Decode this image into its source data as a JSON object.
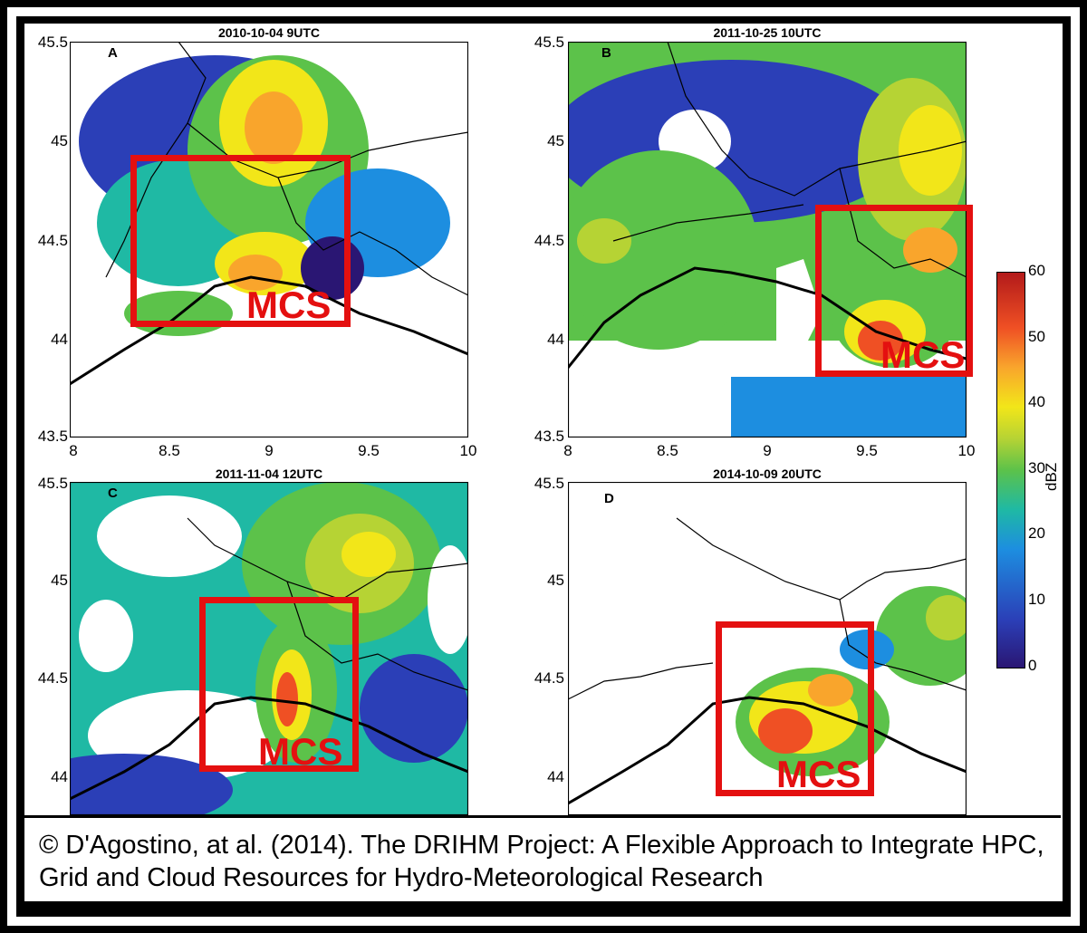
{
  "panels": [
    {
      "title": "2010-10-04 9UTC",
      "letter": "A",
      "mcs": "MCS",
      "y_ticks": [
        "45.5",
        "45",
        "44.5",
        "44",
        "43.5"
      ],
      "x_ticks": [
        "8",
        "8.5",
        "9",
        "9.5",
        "10"
      ]
    },
    {
      "title": "2011-10-25 10UTC",
      "letter": "B",
      "mcs": "MCS",
      "y_ticks": [
        "45.5",
        "45",
        "44.5",
        "44",
        "43.5"
      ],
      "x_ticks": [
        "8",
        "8.5",
        "9",
        "9.5",
        "10"
      ]
    },
    {
      "title": "2011-11-04 12UTC",
      "letter": "C",
      "mcs": "MCS",
      "y_ticks": [
        "45.5",
        "45",
        "44.5",
        "44"
      ],
      "x_ticks": []
    },
    {
      "title": "2014-10-09 20UTC",
      "letter": "D",
      "mcs": "MCS",
      "y_ticks": [
        "45.5",
        "45",
        "44.5",
        "44"
      ],
      "x_ticks": []
    }
  ],
  "colorbar": {
    "unit": "dBZ",
    "ticks": [
      "60",
      "50",
      "40",
      "30",
      "20",
      "10",
      "0"
    ],
    "range": [
      0,
      60
    ],
    "colors": [
      "#2a1673",
      "#2b3fb7",
      "#1d8ee0",
      "#1fb9a4",
      "#5cc24a",
      "#b6d334",
      "#f2e619",
      "#f9a52c",
      "#ef5024",
      "#b31a1a"
    ]
  },
  "caption": "© D'Agostino, at al. (2014). The DRIHM Project: A Flexible Approach to Integrate HPC, Grid and Cloud Resources for Hydro-Meteorological Research",
  "colors": {
    "mcs_box": "#e41010",
    "frame": "#000000"
  }
}
